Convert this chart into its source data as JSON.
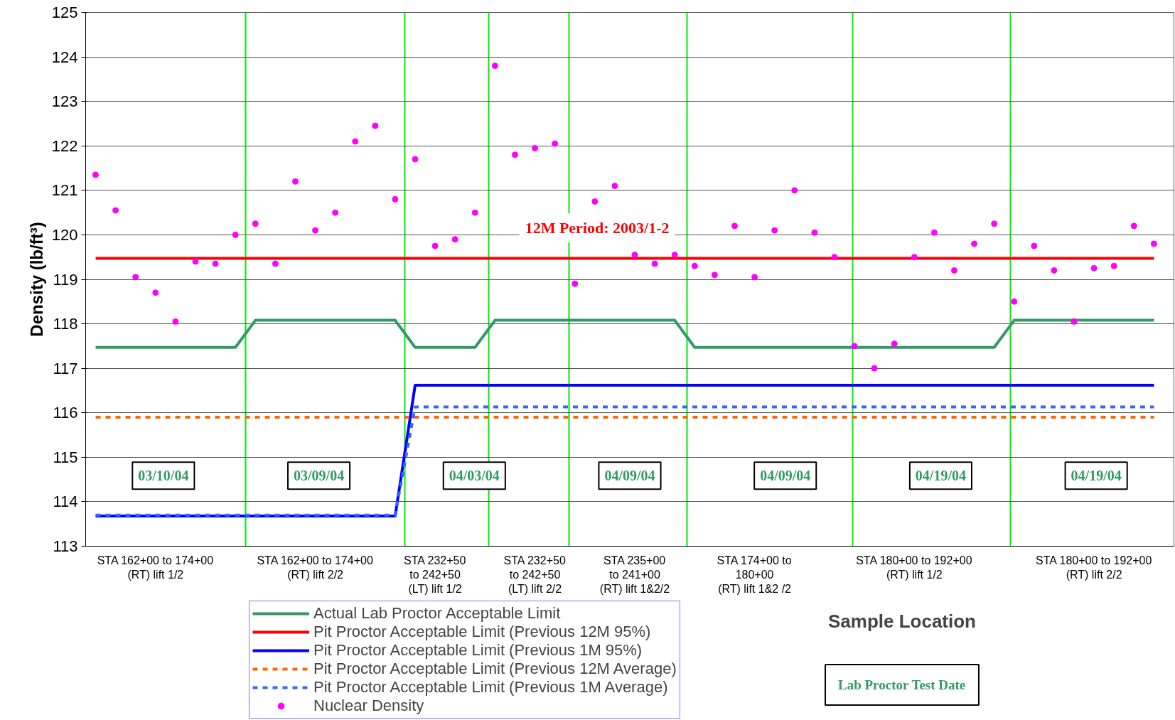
{
  "chart_data": {
    "type": "line",
    "ylabel": "Density (lb/ft³)",
    "xlabel": "Sample Location",
    "ylim": [
      113,
      125
    ],
    "yticks": [
      113,
      114,
      115,
      116,
      117,
      118,
      119,
      120,
      121,
      122,
      123,
      124,
      125
    ],
    "categories": [
      null,
      null,
      null,
      "STA 162+00 to 174+00\n(RT) lift 1/2",
      null,
      null,
      null,
      null,
      null,
      null,
      null,
      "STA 162+00 to 174+00\n(RT) lift 2/2",
      null,
      null,
      null,
      null,
      null,
      "STA 232+50\nto 242+50\n(LT) lift 1/2",
      null,
      null,
      null,
      null,
      "STA 232+50\nto 242+50\n(LT) lift 2/2",
      null,
      null,
      null,
      null,
      "STA 235+00\nto 241+00\n(RT) lift 1&2/2",
      null,
      null,
      null,
      null,
      null,
      "STA 174+00 to\n180+00\n(RT) lift 1&2 /2",
      null,
      null,
      null,
      null,
      null,
      null,
      null,
      "STA 180+00 to 192+00\n(RT) lift 1/2",
      null,
      null,
      null,
      null,
      null,
      null,
      null,
      null,
      "STA 180+00 to 192+00\n(RT) lift 2/2",
      null,
      null,
      null
    ],
    "grid": true,
    "legend": "bottom",
    "series": [
      {
        "name": "Actual Lab Proctor Acceptable Limit",
        "color": "#339966",
        "line_style": "solid",
        "marker": "none",
        "values": [
          117.47,
          117.47,
          117.47,
          117.47,
          117.47,
          117.47,
          117.47,
          117.47,
          118.08,
          118.08,
          118.08,
          118.08,
          118.08,
          118.08,
          118.08,
          118.08,
          117.47,
          117.47,
          117.47,
          117.47,
          118.08,
          118.08,
          118.08,
          118.08,
          118.08,
          118.08,
          118.08,
          118.08,
          118.08,
          118.08,
          117.47,
          117.47,
          117.47,
          117.47,
          117.47,
          117.47,
          117.47,
          117.47,
          117.47,
          117.47,
          117.47,
          117.47,
          117.47,
          117.47,
          117.47,
          117.47,
          118.08,
          118.08,
          118.08,
          118.08,
          118.08,
          118.08,
          118.08,
          118.08
        ]
      },
      {
        "name": "Pit Proctor Acceptable Limit (Previous 12M 95%)",
        "color": "#ff0000",
        "line_style": "solid",
        "marker": "none",
        "values": [
          119.47,
          119.47,
          119.47,
          119.47,
          119.47,
          119.47,
          119.47,
          119.47,
          119.47,
          119.47,
          119.47,
          119.47,
          119.47,
          119.47,
          119.47,
          119.47,
          119.47,
          119.47,
          119.47,
          119.47,
          119.47,
          119.47,
          119.47,
          119.47,
          119.47,
          119.47,
          119.47,
          119.47,
          119.47,
          119.47,
          119.47,
          119.47,
          119.47,
          119.47,
          119.47,
          119.47,
          119.47,
          119.47,
          119.47,
          119.47,
          119.47,
          119.47,
          119.47,
          119.47,
          119.47,
          119.47,
          119.47,
          119.47,
          119.47,
          119.47,
          119.47,
          119.47,
          119.47,
          119.47
        ]
      },
      {
        "name": "Pit Proctor Acceptable Limit (Previous 1M 95%)",
        "color": "#0000ff",
        "line_style": "solid",
        "marker": "none",
        "values": [
          113.68,
          113.68,
          113.68,
          113.68,
          113.68,
          113.68,
          113.68,
          113.68,
          113.68,
          113.68,
          113.68,
          113.68,
          113.68,
          113.68,
          113.68,
          113.68,
          116.62,
          116.62,
          116.62,
          116.62,
          116.62,
          116.62,
          116.62,
          116.62,
          116.62,
          116.62,
          116.62,
          116.62,
          116.62,
          116.62,
          116.62,
          116.62,
          116.62,
          116.62,
          116.62,
          116.62,
          116.62,
          116.62,
          116.62,
          116.62,
          116.62,
          116.62,
          116.62,
          116.62,
          116.62,
          116.62,
          116.62,
          116.62,
          116.62,
          116.62,
          116.62,
          116.62,
          116.62,
          116.62
        ]
      },
      {
        "name": "Pit Proctor Acceptable Limit (Previous 12M Average)",
        "color": "#ff6600",
        "line_style": "dashed",
        "marker": "none",
        "values": [
          115.9,
          115.9,
          115.9,
          115.9,
          115.9,
          115.9,
          115.9,
          115.9,
          115.9,
          115.9,
          115.9,
          115.9,
          115.9,
          115.9,
          115.9,
          115.9,
          115.9,
          115.9,
          115.9,
          115.9,
          115.9,
          115.9,
          115.9,
          115.9,
          115.9,
          115.9,
          115.9,
          115.9,
          115.9,
          115.9,
          115.9,
          115.9,
          115.9,
          115.9,
          115.9,
          115.9,
          115.9,
          115.9,
          115.9,
          115.9,
          115.9,
          115.9,
          115.9,
          115.9,
          115.9,
          115.9,
          115.9,
          115.9,
          115.9,
          115.9,
          115.9,
          115.9,
          115.9,
          115.9
        ]
      },
      {
        "name": "Pit Proctor Acceptable Limit (Previous 1M Average)",
        "color": "#3366ff",
        "line_style": "dashed",
        "marker": "none",
        "values": [
          113.7,
          113.7,
          113.7,
          113.7,
          113.7,
          113.7,
          113.7,
          113.7,
          113.7,
          113.7,
          113.7,
          113.7,
          113.7,
          113.7,
          113.7,
          113.7,
          116.13,
          116.13,
          116.13,
          116.13,
          116.13,
          116.13,
          116.13,
          116.13,
          116.13,
          116.13,
          116.13,
          116.13,
          116.13,
          116.13,
          116.13,
          116.13,
          116.13,
          116.13,
          116.13,
          116.13,
          116.13,
          116.13,
          116.13,
          116.13,
          116.13,
          116.13,
          116.13,
          116.13,
          116.13,
          116.13,
          116.13,
          116.13,
          116.13,
          116.13,
          116.13,
          116.13,
          116.13,
          116.13
        ]
      },
      {
        "name": "Nuclear Density",
        "type": "scatter",
        "color": "#ff00ff",
        "marker": "circle",
        "values": [
          121.35,
          120.55,
          119.05,
          118.7,
          118.05,
          119.4,
          119.35,
          120.0,
          120.25,
          119.35,
          121.2,
          120.1,
          120.5,
          122.1,
          122.45,
          120.8,
          121.7,
          119.75,
          119.9,
          120.5,
          123.8,
          121.8,
          121.95,
          122.05,
          118.9,
          120.75,
          121.1,
          119.55,
          119.35,
          119.55,
          119.3,
          119.1,
          120.2,
          119.05,
          120.1,
          121.0,
          120.05,
          119.5,
          117.5,
          117.0,
          117.55,
          119.5,
          120.05,
          119.2,
          119.8,
          120.25,
          118.5,
          119.75,
          119.2,
          118.05,
          119.25,
          119.3,
          120.2,
          119.8
        ]
      }
    ],
    "annotations": [
      "12M Period: 2003/1-2",
      "03/10/04",
      "03/09/04",
      "04/03/04",
      "04/09/04",
      "04/09/04",
      "04/19/04",
      "04/19/04",
      "Lab Proctor Test Date"
    ]
  }
}
